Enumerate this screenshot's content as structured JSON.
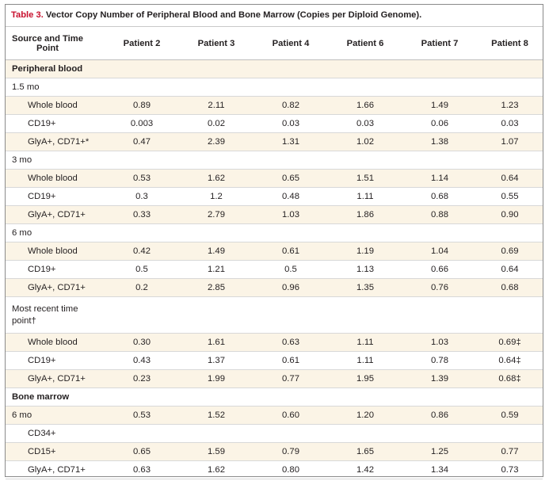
{
  "caption": {
    "label": "Table 3.",
    "text": " Vector Copy Number of Peripheral Blood and Bone Marrow (Copies per Diploid Genome)."
  },
  "headers": [
    "Source and Time Point",
    "Patient 2",
    "Patient 3",
    "Patient 4",
    "Patient 6",
    "Patient 7",
    "Patient 8"
  ],
  "rows": [
    {
      "kind": "section",
      "label": "Peripheral blood",
      "values": [
        "",
        "",
        "",
        "",
        "",
        ""
      ]
    },
    {
      "kind": "time",
      "label": "1.5 mo",
      "values": [
        "",
        "",
        "",
        "",
        "",
        ""
      ]
    },
    {
      "kind": "sub",
      "label": "Whole blood",
      "values": [
        "0.89",
        "2.11",
        "0.82",
        "1.66",
        "1.49",
        "1.23"
      ]
    },
    {
      "kind": "sub",
      "label": "CD19+",
      "values": [
        "0.003",
        "0.02",
        "0.03",
        "0.03",
        "0.06",
        "0.03"
      ]
    },
    {
      "kind": "sub",
      "label": "GlyA+, CD71+*",
      "values": [
        "0.47",
        "2.39",
        "1.31",
        "1.02",
        "1.38",
        "1.07"
      ]
    },
    {
      "kind": "time",
      "label": "3 mo",
      "values": [
        "",
        "",
        "",
        "",
        "",
        ""
      ]
    },
    {
      "kind": "sub",
      "label": "Whole blood",
      "values": [
        "0.53",
        "1.62",
        "0.65",
        "1.51",
        "1.14",
        "0.64"
      ]
    },
    {
      "kind": "sub",
      "label": "CD19+",
      "values": [
        "0.3",
        "1.2",
        "0.48",
        "1.11",
        "0.68",
        "0.55"
      ]
    },
    {
      "kind": "sub",
      "label": "GlyA+, CD71+",
      "values": [
        "0.33",
        "2.79",
        "1.03",
        "1.86",
        "0.88",
        "0.90"
      ]
    },
    {
      "kind": "time",
      "label": "6 mo",
      "values": [
        "",
        "",
        "",
        "",
        "",
        ""
      ]
    },
    {
      "kind": "sub",
      "label": "Whole blood",
      "values": [
        "0.42",
        "1.49",
        "0.61",
        "1.19",
        "1.04",
        "0.69"
      ]
    },
    {
      "kind": "sub",
      "label": "CD19+",
      "values": [
        "0.5",
        "1.21",
        "0.5",
        "1.13",
        "0.66",
        "0.64"
      ]
    },
    {
      "kind": "sub",
      "label": "GlyA+, CD71+",
      "values": [
        "0.2",
        "2.85",
        "0.96",
        "1.35",
        "0.76",
        "0.68"
      ]
    },
    {
      "kind": "time-multi",
      "label": "Most recent time point†",
      "values": [
        "",
        "",
        "",
        "",
        "",
        ""
      ]
    },
    {
      "kind": "sub",
      "label": "Whole blood",
      "values": [
        "0.30",
        "1.61",
        "0.63",
        "1.11",
        "1.03",
        "0.69‡"
      ]
    },
    {
      "kind": "sub",
      "label": "CD19+",
      "values": [
        "0.43",
        "1.37",
        "0.61",
        "1.11",
        "0.78",
        "0.64‡"
      ]
    },
    {
      "kind": "sub",
      "label": "GlyA+, CD71+",
      "values": [
        "0.23",
        "1.99",
        "0.77",
        "1.95",
        "1.39",
        "0.68‡"
      ]
    },
    {
      "kind": "section",
      "label": "Bone marrow",
      "values": [
        "",
        "",
        "",
        "",
        "",
        ""
      ]
    },
    {
      "kind": "time",
      "label": "6 mo",
      "values": [
        "0.53",
        "1.52",
        "0.60",
        "1.20",
        "0.86",
        "0.59"
      ]
    },
    {
      "kind": "sub",
      "label": "CD34+",
      "values": [
        "",
        "",
        "",
        "",
        "",
        ""
      ]
    },
    {
      "kind": "sub",
      "label": "CD15+",
      "values": [
        "0.65",
        "1.59",
        "0.79",
        "1.65",
        "1.25",
        "0.77"
      ]
    },
    {
      "kind": "sub",
      "label": "GlyA+, CD71+",
      "values": [
        "0.63",
        "1.62",
        "0.80",
        "1.42",
        "1.34",
        "0.73"
      ]
    }
  ]
}
